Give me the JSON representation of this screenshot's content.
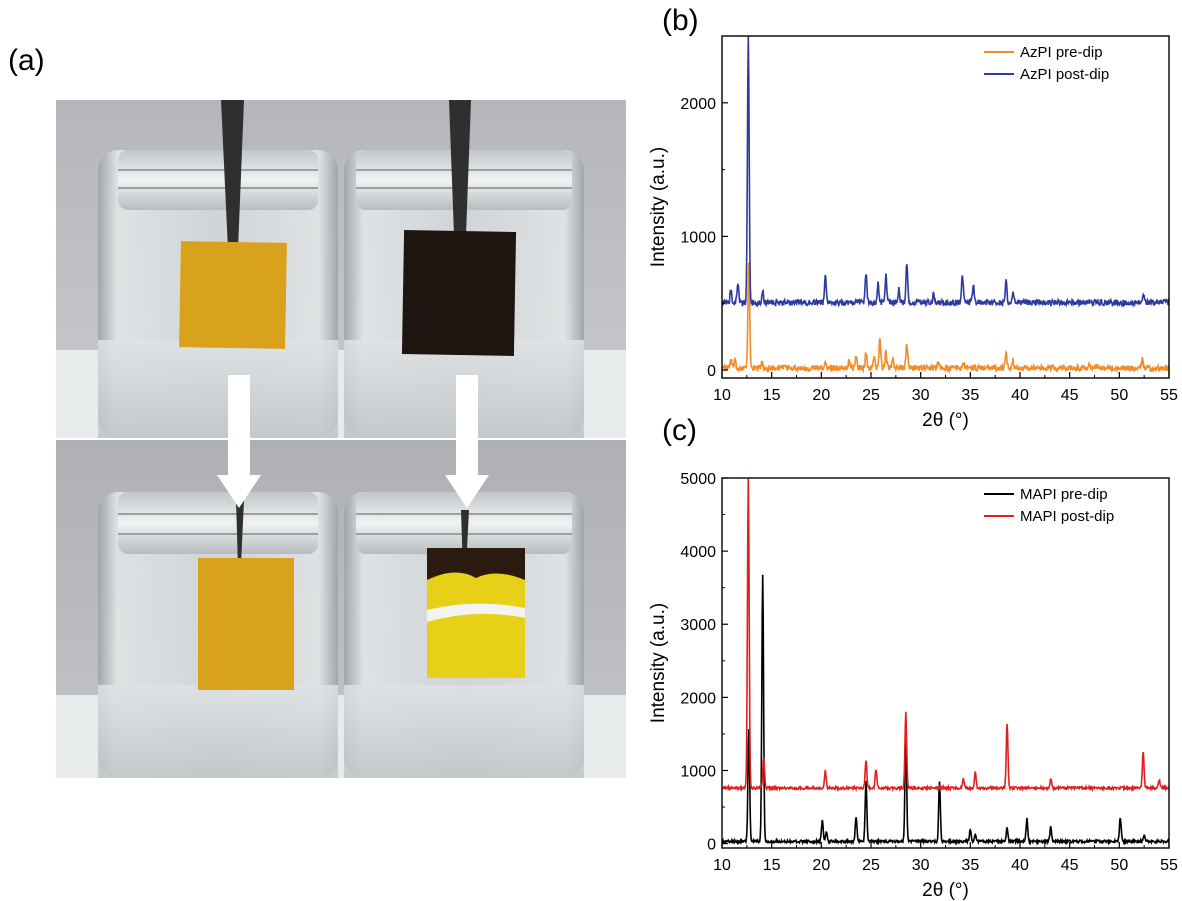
{
  "panels": {
    "a_label": "(a)",
    "b_label": "(b)",
    "c_label": "(c)"
  },
  "photo": {
    "description_icon": "photo-icon"
  },
  "colors": {
    "azpi_pre": "#f28c28",
    "azpi_post": "#2e3a9e",
    "mapi_pre": "#000000",
    "mapi_post": "#e02020"
  },
  "chart_data": [
    {
      "id": "b",
      "type": "line",
      "title": "",
      "xlabel": "2θ (°)",
      "ylabel": "Intensity (a.u.)",
      "xlim": [
        10,
        55
      ],
      "ylim": [
        -60,
        2500
      ],
      "xticks": [
        10,
        15,
        20,
        25,
        30,
        35,
        40,
        45,
        50,
        55
      ],
      "yticks": [
        0,
        1000,
        2000
      ],
      "legend_position": "top-right",
      "series": [
        {
          "name": "AzPI pre-dip",
          "color": "#f28c28",
          "baseline": 15,
          "noise": 22,
          "peaks": [
            [
              10.9,
              60
            ],
            [
              11.3,
              50
            ],
            [
              12.7,
              800
            ],
            [
              14.0,
              40
            ],
            [
              20.4,
              50
            ],
            [
              22.8,
              60
            ],
            [
              23.5,
              90
            ],
            [
              24.5,
              110
            ],
            [
              25.3,
              90
            ],
            [
              25.9,
              230
            ],
            [
              26.5,
              120
            ],
            [
              27.2,
              60
            ],
            [
              28.6,
              190
            ],
            [
              31.8,
              50
            ],
            [
              34.3,
              50
            ],
            [
              38.6,
              110
            ],
            [
              39.3,
              60
            ],
            [
              47.0,
              40
            ],
            [
              52.3,
              60
            ]
          ]
        },
        {
          "name": "AzPI post-dip",
          "color": "#2e3a9e",
          "baseline": 505,
          "noise": 22,
          "peaks": [
            [
              10.9,
              90
            ],
            [
              11.6,
              130
            ],
            [
              12.65,
              2000
            ],
            [
              14.1,
              90
            ],
            [
              20.4,
              200
            ],
            [
              24.5,
              230
            ],
            [
              25.7,
              140
            ],
            [
              26.5,
              200
            ],
            [
              27.8,
              100
            ],
            [
              28.6,
              290
            ],
            [
              31.3,
              60
            ],
            [
              34.2,
              200
            ],
            [
              35.3,
              140
            ],
            [
              38.6,
              160
            ],
            [
              39.3,
              80
            ],
            [
              52.4,
              70
            ]
          ]
        }
      ]
    },
    {
      "id": "c",
      "type": "line",
      "title": "",
      "xlabel": "2θ (°)",
      "ylabel": "Intensity (a.u.)",
      "xlim": [
        10,
        55
      ],
      "ylim": [
        -60,
        5000
      ],
      "xticks": [
        10,
        15,
        20,
        25,
        30,
        35,
        40,
        45,
        50,
        55
      ],
      "yticks": [
        0,
        1000,
        2000,
        3000,
        4000,
        5000
      ],
      "legend_position": "top-right",
      "series": [
        {
          "name": "MAPI pre-dip",
          "color": "#000000",
          "baseline": 30,
          "noise": 18,
          "peaks": [
            [
              12.7,
              1550
            ],
            [
              14.1,
              3650
            ],
            [
              20.1,
              280
            ],
            [
              20.5,
              130
            ],
            [
              23.5,
              330
            ],
            [
              24.5,
              820
            ],
            [
              28.5,
              1480
            ],
            [
              31.9,
              830
            ],
            [
              35.0,
              160
            ],
            [
              35.5,
              110
            ],
            [
              38.7,
              180
            ],
            [
              40.7,
              320
            ],
            [
              43.1,
              200
            ],
            [
              50.1,
              330
            ],
            [
              52.5,
              80
            ]
          ]
        },
        {
          "name": "MAPI post-dip",
          "color": "#e02020",
          "baseline": 760,
          "noise": 18,
          "peaks": [
            [
              12.65,
              4250
            ],
            [
              14.2,
              420
            ],
            [
              20.4,
              240
            ],
            [
              24.5,
              380
            ],
            [
              25.5,
              260
            ],
            [
              28.5,
              1030
            ],
            [
              34.3,
              120
            ],
            [
              35.5,
              210
            ],
            [
              38.7,
              880
            ],
            [
              43.1,
              120
            ],
            [
              52.4,
              500
            ],
            [
              54.0,
              110
            ]
          ]
        }
      ]
    }
  ]
}
